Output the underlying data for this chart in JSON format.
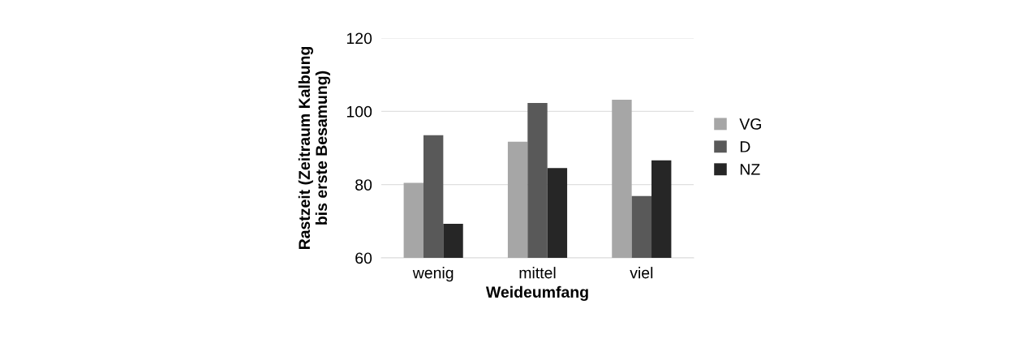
{
  "chart_data": {
    "type": "bar",
    "xlabel": "Weideumfang",
    "ylabel": "Rastzeit (Zeitraum Kalbung\nbis erste Besamung)",
    "categories": [
      "wenig",
      "mittel",
      "viel"
    ],
    "series": [
      {
        "name": "VG",
        "color": "#a6a6a6",
        "values": [
          80.5,
          91.7,
          103.2
        ]
      },
      {
        "name": "D",
        "color": "#595959",
        "values": [
          93.5,
          102.3,
          76.9
        ]
      },
      {
        "name": "NZ",
        "color": "#262626",
        "values": [
          69.3,
          84.5,
          86.6
        ]
      }
    ],
    "ylim": [
      60,
      120
    ],
    "yticks": [
      60,
      80,
      100,
      120
    ],
    "grid": "y",
    "legend": "right"
  }
}
